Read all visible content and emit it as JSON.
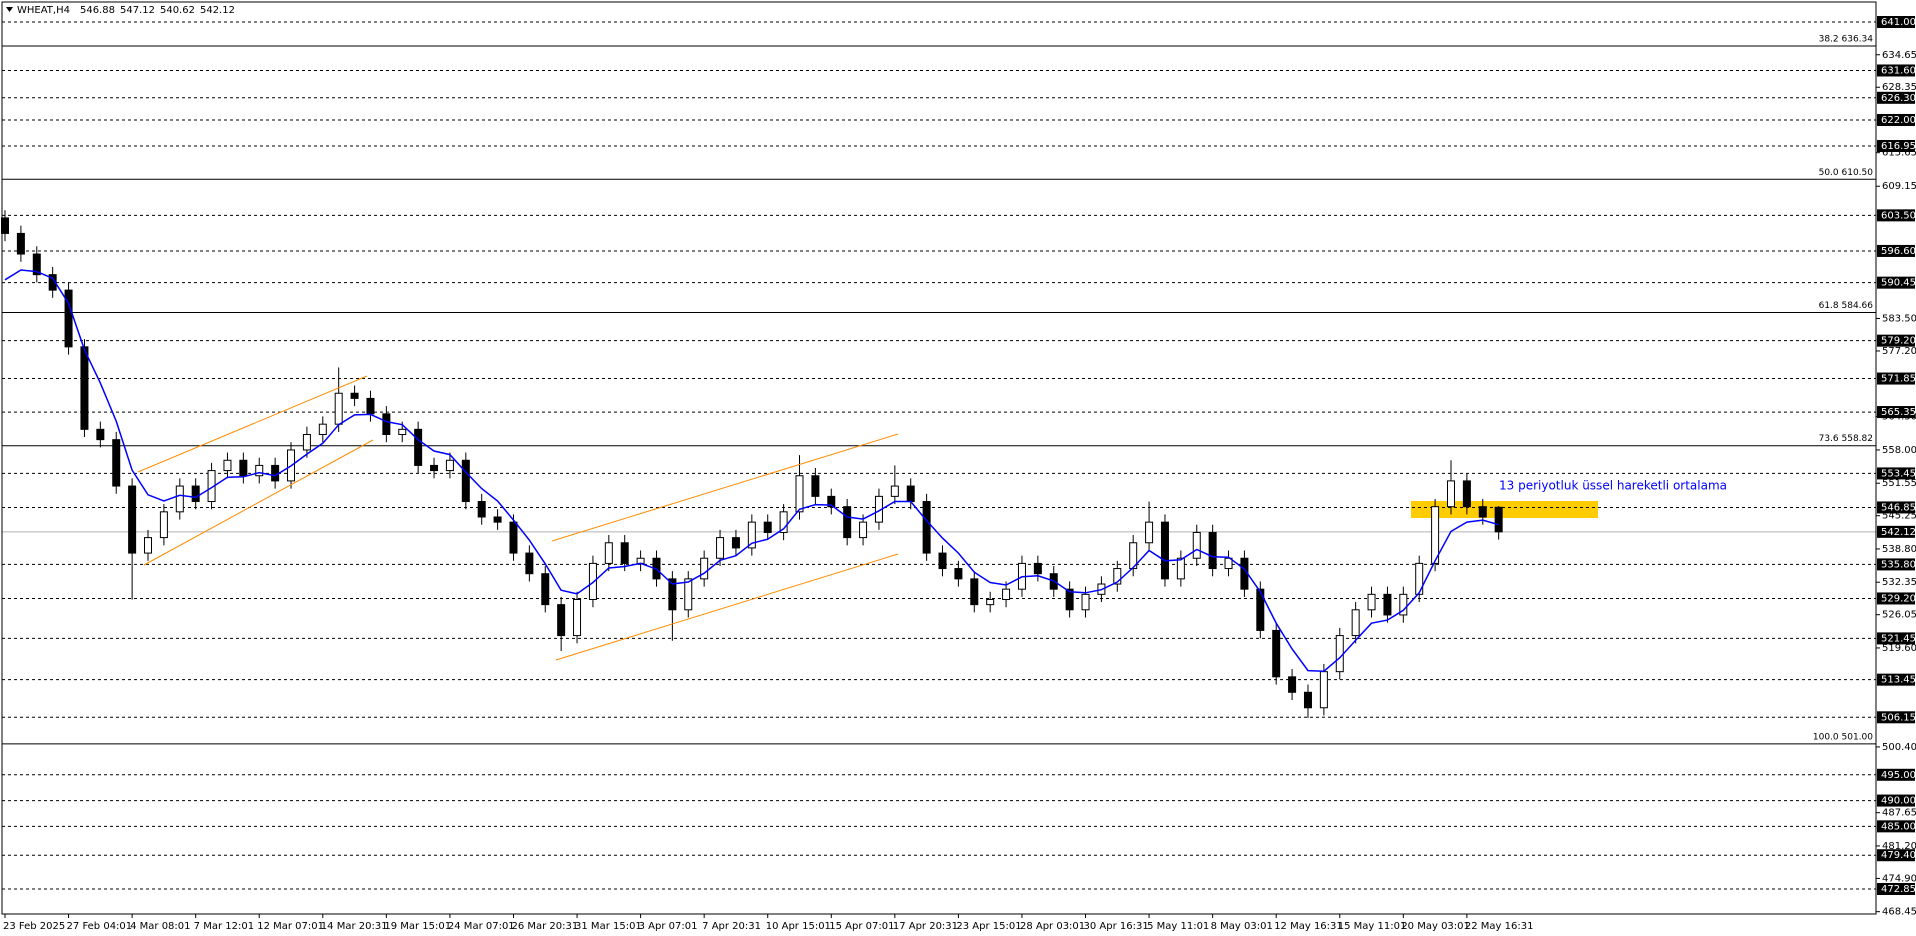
{
  "chart_data": {
    "type": "candlestick",
    "title": "WHEAT,H4",
    "categories": [
      "23 Feb 2025",
      null,
      null,
      null,
      "27 Feb 04:01",
      null,
      null,
      null,
      "4 Mar 08:01",
      null,
      null,
      null,
      "7 Mar 12:01",
      null,
      null,
      null,
      "12 Mar 07:01",
      null,
      null,
      null,
      "14 Mar 20:31",
      null,
      null,
      null,
      "19 Mar 15:01",
      null,
      null,
      null,
      "24 Mar 07:01",
      null,
      null,
      null,
      "26 Mar 20:31",
      null,
      null,
      null,
      "31 Mar 15:01",
      null,
      null,
      null,
      "3 Apr 07:01",
      null,
      null,
      null,
      "7 Apr 20:31",
      null,
      null,
      null,
      "10 Apr 15:01",
      null,
      null,
      null,
      "15 Apr 07:01",
      null,
      null,
      null,
      "17 Apr 20:31",
      null,
      null,
      null,
      "23 Apr 15:01",
      null,
      null,
      null,
      "28 Apr 03:01",
      null,
      null,
      null,
      "30 Apr 16:31",
      null,
      null,
      null,
      "5 May 11:01",
      null,
      null,
      null,
      "8 May 03:01",
      null,
      null,
      null,
      "12 May 16:31",
      null,
      null,
      null,
      "15 May 11:01",
      null,
      null,
      null,
      "20 May 03:01",
      null,
      null,
      null,
      "22 May 16:31",
      null,
      null
    ],
    "open": [
      603,
      600,
      596,
      592,
      589,
      578,
      562,
      560,
      551,
      538,
      541,
      546,
      551,
      548,
      554,
      556,
      553,
      555,
      552,
      558,
      561,
      563,
      569,
      568,
      565,
      561,
      562,
      555,
      554,
      556,
      548,
      545,
      544,
      538,
      534,
      528,
      522,
      529,
      536,
      540,
      536,
      537,
      533,
      527,
      533,
      537,
      541,
      539,
      544,
      542,
      546,
      553,
      549,
      547,
      541,
      544,
      549,
      551,
      548,
      538,
      535,
      533,
      528,
      529,
      531,
      536,
      534,
      531,
      527,
      530,
      532,
      535,
      540,
      544,
      533,
      537,
      542,
      535,
      537,
      531,
      523,
      514,
      511,
      508,
      515,
      522,
      527,
      530,
      526,
      530,
      536,
      547,
      552,
      547,
      546.88
    ],
    "high": [
      604.5,
      601.5,
      597.5,
      593.5,
      590.5,
      579.5,
      563.5,
      561.5,
      552.5,
      542.5,
      547.5,
      552.5,
      552.5,
      555.5,
      557.5,
      557.5,
      556.5,
      556.5,
      559.5,
      562.5,
      564.5,
      574,
      570.5,
      569.5,
      566.5,
      563.5,
      563.5,
      556.5,
      557.5,
      557.5,
      549.5,
      546.5,
      545.5,
      539.5,
      535.5,
      529.5,
      530.5,
      537.5,
      541.5,
      541.5,
      538.5,
      538.5,
      534.5,
      534.5,
      538.5,
      542.5,
      542.5,
      545.5,
      545.5,
      547.5,
      557,
      554.5,
      550.5,
      548.5,
      545.5,
      550.5,
      555,
      552.5,
      549.5,
      539.5,
      536.5,
      534.5,
      530.5,
      532.5,
      537.5,
      537.5,
      535.5,
      532.5,
      531.5,
      533.5,
      536.5,
      541.5,
      548,
      545.5,
      538.5,
      543.5,
      543.5,
      538.5,
      538.5,
      532.5,
      524.5,
      515.5,
      512.5,
      516.5,
      523.5,
      528.5,
      531.5,
      531.5,
      531.5,
      537.5,
      548.5,
      556,
      553.5,
      548.5,
      547.12
    ],
    "low": [
      598.5,
      594.5,
      590.5,
      587.5,
      576.5,
      560.5,
      558.5,
      549.5,
      529,
      536.5,
      539.5,
      544.5,
      546.5,
      546.5,
      552.5,
      551.5,
      551.5,
      550.5,
      550.5,
      556.5,
      559.5,
      561.5,
      566.5,
      563.5,
      559.5,
      559.5,
      553.5,
      552.5,
      552.5,
      546.5,
      543.5,
      542.5,
      536.5,
      532.5,
      526.5,
      519,
      520.5,
      527.5,
      534.5,
      534.5,
      534.5,
      531.5,
      521,
      525.5,
      531.5,
      535.5,
      537.5,
      537.5,
      540.5,
      540.5,
      544.5,
      547.5,
      545.5,
      539.5,
      539.5,
      542.5,
      547.5,
      546.5,
      536.5,
      533.5,
      531.5,
      526.5,
      526.5,
      527.5,
      529.5,
      532.5,
      529.5,
      525.5,
      525.5,
      528.5,
      530.5,
      533.5,
      538.5,
      531.5,
      531.5,
      535.5,
      533.5,
      533.5,
      529.5,
      521.5,
      512.5,
      509.5,
      506,
      506.5,
      513.5,
      520.5,
      525.5,
      524.5,
      524.5,
      528.5,
      534.5,
      545.5,
      545.5,
      543.5,
      540.62
    ],
    "close": [
      600,
      596,
      592,
      589,
      578,
      562,
      560,
      551,
      538,
      541,
      546,
      551,
      548,
      554,
      556,
      553,
      555,
      552,
      558,
      561,
      563,
      569,
      568,
      565,
      561,
      562,
      555,
      554,
      556,
      548,
      545,
      544,
      538,
      534,
      528,
      522,
      529,
      536,
      540,
      536,
      537,
      533,
      527,
      533,
      537,
      541,
      539,
      544,
      542,
      546,
      553,
      549,
      547,
      541,
      544,
      549,
      551,
      548,
      538,
      535,
      533,
      528,
      529,
      531,
      536,
      534,
      531,
      527,
      530,
      532,
      535,
      540,
      544,
      533,
      537,
      542,
      535,
      537,
      531,
      523,
      514,
      511,
      508,
      515,
      522,
      527,
      530,
      526,
      530,
      536,
      547,
      552,
      547,
      545,
      542.12
    ],
    "series": [
      {
        "name": "13 periyotluk üssel hareketli ortalama",
        "color": "#0000ff",
        "values": [
          591,
          592.9,
          592.6,
          591.3,
          586.4,
          577.4,
          571.0,
          563.6,
          554.1,
          549.3,
          548.1,
          549.2,
          548.8,
          550.7,
          552.7,
          552.8,
          553.6,
          553.0,
          554.9,
          557.2,
          559.3,
          562.9,
          564.8,
          564.9,
          563.5,
          562.9,
          560.0,
          557.8,
          557.1,
          553.7,
          550.5,
          548.1,
          544.4,
          540.5,
          535.9,
          530.8,
          530.1,
          532.3,
          535.1,
          535.4,
          536.0,
          534.9,
          532.0,
          532.4,
          534.1,
          536.6,
          537.5,
          539.9,
          540.7,
          542.7,
          546.5,
          547.4,
          547.3,
          545.0,
          544.6,
          546.2,
          548.0,
          548.0,
          544.3,
          540.9,
          538.0,
          534.3,
          532.3,
          531.8,
          533.4,
          533.6,
          532.6,
          530.5,
          530.3,
          530.9,
          532.4,
          535.2,
          538.5,
          536.5,
          536.7,
          538.7,
          537.3,
          537.2,
          534.9,
          530.5,
          524.4,
          519.4,
          515.2,
          515.1,
          517.7,
          521.1,
          524.4,
          525.0,
          526.9,
          530.3,
          536.5,
          542.2,
          544.0,
          544.4,
          543.5
        ]
      }
    ],
    "ylim": [
      468,
      645.27
    ],
    "yticks": [
      634.65,
      628.35,
      615.65,
      609.15,
      {
        "value": 583.5,
        "label": "583.50"
      },
      {
        "value": 577.2,
        "label": "577.20"
      },
      {
        "value": 564.5,
        "label": "564.50"
      },
      {
        "value": 558,
        "label": "558.00"
      },
      551.55,
      545.25,
      {
        "value": 538.8,
        "label": "538.80"
      },
      532.35,
      526.05,
      {
        "value": 519.6,
        "label": "519.60"
      },
      {
        "value": 500.4,
        "label": "500.40"
      },
      487.65,
      {
        "value": 481.2,
        "label": "481.20"
      },
      {
        "value": 474.9,
        "label": "474.90"
      },
      468.45
    ],
    "levels": [
      {
        "value": 641,
        "label": "641.00"
      },
      {
        "value": 631.6,
        "label": "631.60"
      },
      {
        "value": 626.3,
        "label": "626.30"
      },
      {
        "value": 622,
        "label": "622.00"
      },
      616.95,
      {
        "value": 603.5,
        "label": "603.50"
      },
      {
        "value": 596.6,
        "label": "596.60"
      },
      590.45,
      {
        "value": 579.2,
        "label": "579.20"
      },
      571.85,
      565.35,
      553.45,
      546.85,
      {
        "value": 535.8,
        "label": "535.80"
      },
      {
        "value": 529.2,
        "label": "529.20"
      },
      521.45,
      513.45,
      506.15,
      {
        "value": 495,
        "label": "495.00"
      },
      {
        "value": 490,
        "label": "490.00"
      },
      {
        "value": 485,
        "label": "485.00"
      },
      {
        "value": 479.4,
        "label": "479.40"
      },
      472.85
    ],
    "fib_levels": [
      {
        "value": 636.34,
        "label": "38.2 636.34"
      },
      {
        "value": 610.5,
        "label": "50.0 610.50"
      },
      {
        "value": 584.66,
        "label": "61.8 584.66"
      },
      {
        "value": 558.82,
        "label": "73.6 558.82"
      },
      {
        "value": 501,
        "label": "100.0 501.00"
      }
    ],
    "grid": false
  }
}
